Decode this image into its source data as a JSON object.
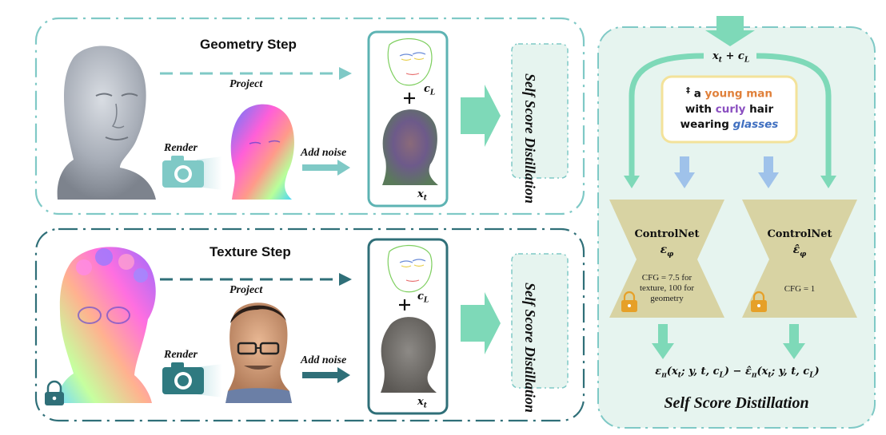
{
  "geometry": {
    "title": "Geometry Step",
    "project_label": "Project",
    "render_label": "Render",
    "noise_label": "Add noise",
    "cond_label": "c_L",
    "noisy_label": "x_t",
    "ssd_box_label": "Self Score Distillation"
  },
  "texture": {
    "title": "Texture Step",
    "project_label": "Project",
    "render_label": "Render",
    "noise_label": "Add noise",
    "cond_label": "c_L",
    "noisy_label": "x_t",
    "ssd_box_label": "Self Score Distillation"
  },
  "panel": {
    "input_label": "x_t + c_L",
    "prompt": {
      "marker": "‡",
      "w1": "a",
      "w2": "young man",
      "w3": "with",
      "w4": "curly",
      "w5": "hair",
      "w6": "wearing",
      "w7": "glasses"
    },
    "left_net": {
      "title": "ControlNet",
      "symbol": "ε_φ",
      "cfg_line1": "CFG = 7.5 for",
      "cfg_line2": "texture, 100 for",
      "cfg_line3": "geometry"
    },
    "right_net": {
      "title": "ControlNet",
      "symbol": "ε̂_φ",
      "cfg_line1": "CFG = 1"
    },
    "formula": "ε_π(x_t; y, t, c_L) − ε̂_π(x_t; y, t, c_L)",
    "title": "Self Score Distillation"
  },
  "colors": {
    "teal_light": "#7fc9c6",
    "teal_dark": "#2f6f78",
    "mint_arrow": "#7ed9b8",
    "panel_bg": "#e6f4ef",
    "net_fill": "#d8d3a3",
    "prompt_border": "#f3e29a",
    "lock": "#e6a028",
    "blue_arrow": "#9fc2ea"
  }
}
